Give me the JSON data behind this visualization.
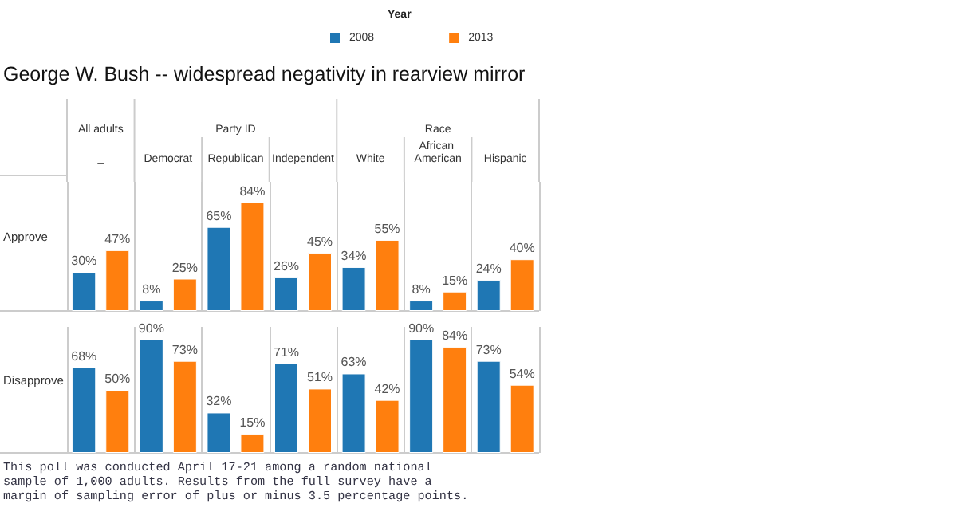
{
  "chart_data": [
    {
      "type": "bar",
      "title": "George W. Bush -- widespread negativity in rearview mirror",
      "legend_title": "Year",
      "ylabel": "Approve",
      "annotations": [
        "All adults",
        "Party ID",
        "Race"
      ],
      "categories": [
        "_",
        "Democrat",
        "Republican",
        "Independent",
        "White",
        "African American",
        "Hispanic"
      ],
      "series": [
        {
          "name": "2008",
          "color": "#1f77b4",
          "values": [
            30,
            8,
            65,
            26,
            34,
            8,
            24
          ],
          "value_labels": [
            "30%",
            "8%",
            "65%",
            "26%",
            "34%",
            "8%",
            "24%"
          ]
        },
        {
          "name": "2013",
          "color": "#ff7f0e",
          "values": [
            47,
            25,
            84,
            45,
            55,
            15,
            40
          ],
          "value_labels": [
            "47%",
            "25%",
            "84%",
            "45%",
            "55%",
            "15%",
            "40%"
          ]
        }
      ],
      "legend": "top",
      "grid": "x",
      "tick_labels": "x"
    },
    {
      "type": "bar",
      "ylabel": "Disapprove",
      "annotations": [
        "This poll was conducted April 17-21 among a random national sample of 1,000 adults. Results from the full survey have a margin of sampling error of plus or minus 3.5 percentage points."
      ],
      "categories": [
        "_",
        "Democrat",
        "Republican",
        "Independent",
        "White",
        "African American",
        "Hispanic"
      ],
      "series": [
        {
          "color": "#1f77b4",
          "values": [
            68,
            90,
            32,
            71,
            63,
            90,
            73
          ],
          "value_labels": [
            "68%",
            "90%",
            "32%",
            "71%",
            "63%",
            "90%",
            "73%"
          ]
        },
        {
          "color": "#ff7f0e",
          "values": [
            50,
            73,
            15,
            51,
            42,
            84,
            54
          ],
          "value_labels": [
            "50%",
            "73%",
            "15%",
            "51%",
            "42%",
            "84%",
            "54%"
          ]
        }
      ],
      "legend": false,
      "grid": "x",
      "tick_labels": false
    }
  ]
}
